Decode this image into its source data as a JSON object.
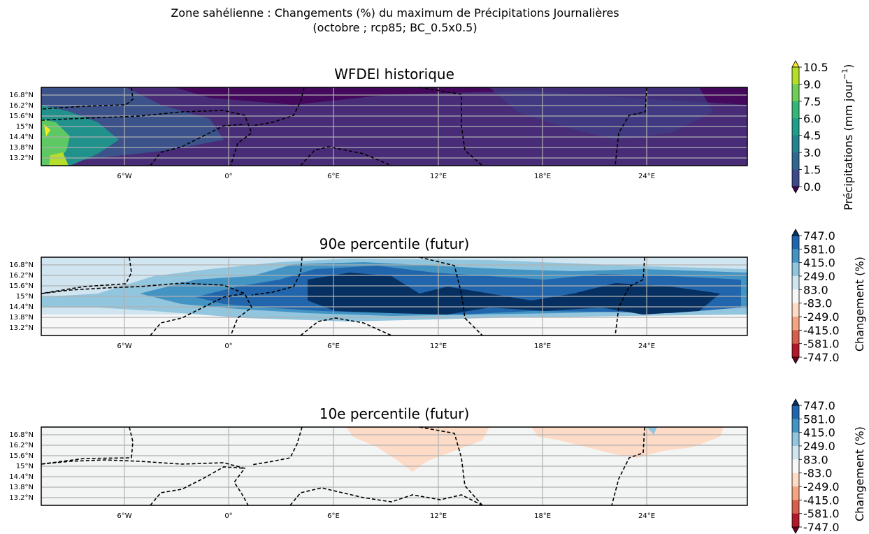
{
  "title_line1": "Zone sahélienne : Changements (%) du maximum de Précipitations Journalières",
  "title_line2": "(octobre ; rcp85; BC_0.5x0.5)",
  "x_ticks": [
    "6°W",
    "0°",
    "6°E",
    "12°E",
    "18°E",
    "24°E"
  ],
  "y_ticks": [
    "16.8°N",
    "16.2°N",
    "15.6°N",
    "15°N",
    "14.4°N",
    "13.8°N",
    "13.2°N"
  ],
  "panels": [
    {
      "title": "WFDEI historique",
      "colorbar_label": "Précipitations (mm jour",
      "colorbar_label_sup": "−1",
      "colorbar_label_end": ")",
      "colorbar_ticks": [
        "10.5",
        "9.0",
        "7.5",
        "6.0",
        "4.5",
        "3.0",
        "1.5",
        "0.0"
      ],
      "colorbar_colors": [
        "#fde725",
        "#b5de2b",
        "#6ece58",
        "#35b779",
        "#1f9e89",
        "#26828e",
        "#31688e",
        "#3e4989",
        "#482878",
        "#440154"
      ]
    },
    {
      "title": "90e percentile (futur)",
      "colorbar_label": "Changement (%)",
      "colorbar_ticks": [
        "747.0",
        "581.0",
        "415.0",
        "249.0",
        "83.0",
        "-83.0",
        "-249.0",
        "-415.0",
        "-581.0",
        "-747.0"
      ],
      "colorbar_colors": [
        "#053061",
        "#2166ac",
        "#4393c3",
        "#92c5de",
        "#d1e5f0",
        "#f7f7f7",
        "#fddbc7",
        "#f4a582",
        "#d6604d",
        "#b2182b",
        "#67001f"
      ]
    },
    {
      "title": "10e percentile (futur)",
      "colorbar_label": "Changement (%)",
      "colorbar_ticks": [
        "747.0",
        "581.0",
        "415.0",
        "249.0",
        "83.0",
        "-83.0",
        "-249.0",
        "-415.0",
        "-581.0",
        "-747.0"
      ],
      "colorbar_colors": [
        "#053061",
        "#2166ac",
        "#4393c3",
        "#92c5de",
        "#d1e5f0",
        "#f7f7f7",
        "#fddbc7",
        "#f4a582",
        "#d6604d",
        "#b2182b",
        "#67001f"
      ]
    }
  ]
}
